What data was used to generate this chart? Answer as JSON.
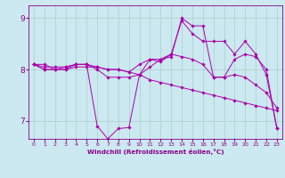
{
  "xlabel": "Windchill (Refroidissement éolien,°C)",
  "bg_color": "#cce8f0",
  "grid_color": "#aacfcc",
  "line_color": "#aa00aa",
  "x_ticks": [
    0,
    1,
    2,
    3,
    4,
    5,
    6,
    7,
    8,
    9,
    10,
    11,
    12,
    13,
    14,
    15,
    16,
    17,
    18,
    19,
    20,
    21,
    22,
    23
  ],
  "y_ticks": [
    7,
    8,
    9
  ],
  "ylim": [
    6.65,
    9.25
  ],
  "xlim": [
    -0.5,
    23.5
  ],
  "series": [
    [
      8.1,
      8.1,
      8.0,
      8.0,
      8.1,
      8.1,
      6.9,
      6.65,
      6.85,
      6.87,
      7.9,
      8.2,
      8.15,
      8.3,
      8.95,
      8.7,
      8.55,
      8.55,
      8.55,
      8.3,
      8.55,
      8.3,
      7.9,
      6.85
    ],
    [
      8.1,
      8.0,
      8.0,
      8.05,
      8.1,
      8.1,
      8.0,
      7.85,
      7.85,
      7.85,
      7.9,
      8.05,
      8.2,
      8.3,
      8.25,
      8.2,
      8.1,
      7.85,
      7.85,
      7.9,
      7.85,
      7.7,
      7.55,
      7.25
    ],
    [
      8.1,
      8.0,
      8.0,
      8.0,
      8.05,
      8.05,
      8.05,
      8.0,
      8.0,
      7.95,
      7.9,
      7.8,
      7.75,
      7.7,
      7.65,
      7.6,
      7.55,
      7.5,
      7.45,
      7.4,
      7.35,
      7.3,
      7.25,
      7.2
    ],
    [
      8.1,
      8.05,
      8.05,
      8.05,
      8.1,
      8.1,
      8.05,
      8.0,
      8.0,
      7.95,
      8.1,
      8.2,
      8.2,
      8.25,
      9.0,
      8.85,
      8.85,
      7.85,
      7.85,
      8.2,
      8.3,
      8.25,
      8.0,
      6.85
    ]
  ]
}
